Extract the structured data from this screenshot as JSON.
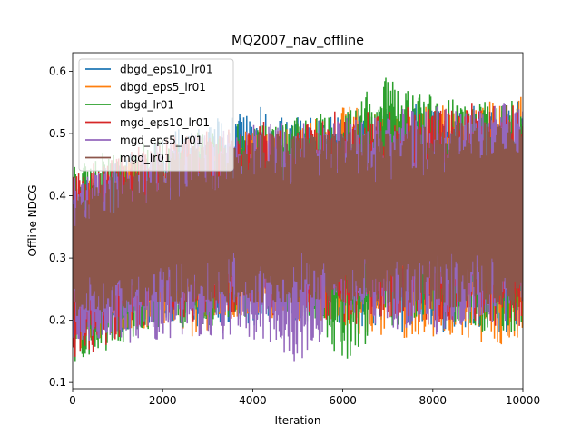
{
  "chart_data": {
    "type": "line",
    "title": "MQ2007_nav_offline",
    "xlabel": "Iteration",
    "ylabel": "Offline NDCG",
    "xlim": [
      0,
      10000
    ],
    "ylim": [
      0.09,
      0.63
    ],
    "xticks": [
      0,
      2000,
      4000,
      6000,
      8000,
      10000
    ],
    "xtick_labels": [
      "0",
      "2000",
      "4000",
      "6000",
      "8000",
      "10000"
    ],
    "yticks": [
      0.1,
      0.2,
      0.3,
      0.4,
      0.5,
      0.6
    ],
    "ytick_labels": [
      "0.1",
      "0.2",
      "0.3",
      "0.4",
      "0.5",
      "0.6"
    ],
    "grid": false,
    "legend_position": "top-left",
    "series": [
      {
        "name": "dbgd_eps10_lr01",
        "color": "#1f77b4",
        "x": [
          0,
          1000,
          2000,
          3000,
          4000,
          5000,
          6000,
          7000,
          8000,
          9000,
          10000
        ],
        "low": [
          0.16,
          0.18,
          0.19,
          0.19,
          0.18,
          0.2,
          0.19,
          0.18,
          0.18,
          0.18,
          0.18
        ],
        "high": [
          0.42,
          0.47,
          0.5,
          0.52,
          0.55,
          0.53,
          0.54,
          0.55,
          0.55,
          0.55,
          0.56
        ]
      },
      {
        "name": "dbgd_eps5_lr01",
        "color": "#ff7f0e",
        "x": [
          0,
          1000,
          2000,
          3000,
          4000,
          5000,
          6000,
          7000,
          8000,
          9000,
          10000
        ],
        "low": [
          0.15,
          0.17,
          0.18,
          0.17,
          0.2,
          0.2,
          0.18,
          0.17,
          0.17,
          0.16,
          0.16
        ],
        "high": [
          0.42,
          0.46,
          0.48,
          0.5,
          0.51,
          0.52,
          0.55,
          0.53,
          0.56,
          0.55,
          0.56
        ]
      },
      {
        "name": "dbgd_lr01",
        "color": "#2ca02c",
        "x": [
          0,
          1000,
          2000,
          3000,
          4000,
          5000,
          6000,
          7000,
          8000,
          9000,
          10000
        ],
        "low": [
          0.12,
          0.16,
          0.19,
          0.18,
          0.2,
          0.2,
          0.13,
          0.19,
          0.19,
          0.18,
          0.18
        ],
        "high": [
          0.45,
          0.48,
          0.49,
          0.51,
          0.52,
          0.53,
          0.54,
          0.6,
          0.56,
          0.55,
          0.57
        ]
      },
      {
        "name": "mgd_eps10_lr01",
        "color": "#d62728",
        "x": [
          0,
          1000,
          2000,
          3000,
          4000,
          5000,
          6000,
          7000,
          8000,
          9000,
          10000
        ],
        "low": [
          0.13,
          0.17,
          0.19,
          0.2,
          0.2,
          0.21,
          0.19,
          0.19,
          0.19,
          0.19,
          0.19
        ],
        "high": [
          0.44,
          0.47,
          0.49,
          0.51,
          0.52,
          0.52,
          0.54,
          0.54,
          0.55,
          0.55,
          0.56
        ]
      },
      {
        "name": "mgd_eps5_lr01",
        "color": "#9467bd",
        "x": [
          0,
          1000,
          2000,
          3000,
          4000,
          5000,
          6000,
          7000,
          8000,
          9000,
          10000
        ],
        "low": [
          0.16,
          0.16,
          0.17,
          0.16,
          0.17,
          0.13,
          0.2,
          0.19,
          0.17,
          0.19,
          0.2
        ],
        "high": [
          0.43,
          0.46,
          0.49,
          0.5,
          0.52,
          0.52,
          0.53,
          0.54,
          0.55,
          0.55,
          0.56
        ]
      },
      {
        "name": "mgd_lr01",
        "color": "#8c564b",
        "x": [
          0,
          1000,
          2000,
          3000,
          4000,
          5000,
          6000,
          7000,
          8000,
          9000,
          10000
        ],
        "low": [
          0.2,
          0.21,
          0.22,
          0.22,
          0.22,
          0.22,
          0.22,
          0.22,
          0.22,
          0.22,
          0.22
        ],
        "high": [
          0.4,
          0.44,
          0.47,
          0.49,
          0.5,
          0.5,
          0.51,
          0.51,
          0.52,
          0.52,
          0.52
        ]
      }
    ]
  }
}
